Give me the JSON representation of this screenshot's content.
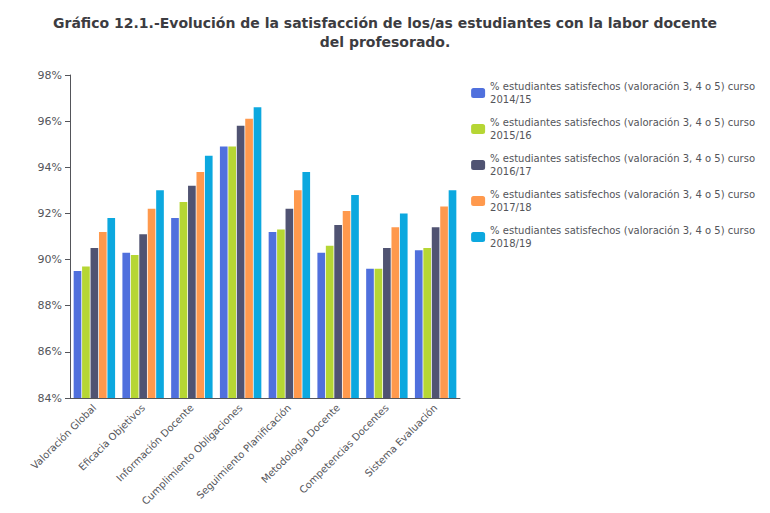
{
  "chart_data": {
    "type": "bar",
    "title": "Gráfico 12.1.-Evolución de la satisfacción de los/as estudiantes con la labor docente\ndel profesorado.",
    "categories": [
      "Valoración Global",
      "Eficacia Objetivos",
      "Información Docente",
      "Cumplimiento Obligaciones",
      "Seguimiento Planificación",
      "Metodología Docente",
      "Competencias Docentes",
      "Sistema Evaluación"
    ],
    "series": [
      {
        "name": "% estudiantes satisfechos (valoración 3, 4 o 5) curso\n2014/15",
        "values": [
          89.5,
          90.3,
          91.8,
          94.9,
          91.2,
          90.3,
          89.6,
          90.4
        ]
      },
      {
        "name": "% estudiantes satisfechos (valoración 3, 4 o 5) curso\n2015/16",
        "values": [
          89.7,
          90.2,
          92.5,
          94.9,
          91.3,
          90.6,
          89.6,
          90.5
        ]
      },
      {
        "name": "% estudiantes satisfechos (valoración 3, 4 o 5) curso\n2016/17",
        "values": [
          90.5,
          91.1,
          93.2,
          95.8,
          92.2,
          91.5,
          90.5,
          91.4
        ]
      },
      {
        "name": "% estudiantes satisfechos (valoración 3, 4 o 5) curso\n2017/18",
        "values": [
          91.2,
          92.2,
          93.8,
          96.1,
          93.0,
          92.1,
          91.4,
          92.3
        ]
      },
      {
        "name": "% estudiantes satisfechos (valoración 3, 4 o 5) curso\n2018/19",
        "values": [
          91.8,
          93.0,
          94.5,
          96.6,
          93.8,
          92.8,
          92.0,
          93.0
        ]
      }
    ],
    "ylim": [
      84,
      98
    ],
    "yticks": [
      {
        "value": 84,
        "label": "84%"
      },
      {
        "value": 86,
        "label": "86%"
      },
      {
        "value": 88,
        "label": "88%"
      },
      {
        "value": 90,
        "label": "90%"
      },
      {
        "value": 92,
        "label": "92%"
      },
      {
        "value": 94,
        "label": "94%"
      },
      {
        "value": 96,
        "label": "96%"
      },
      {
        "value": 98,
        "label": "98%"
      }
    ],
    "grid": false,
    "legend": "right"
  }
}
